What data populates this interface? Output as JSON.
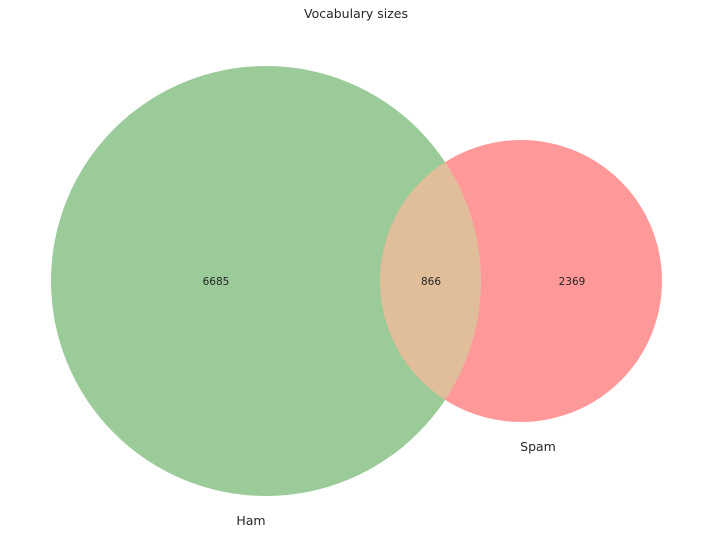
{
  "chart_data": {
    "type": "venn",
    "title": "Vocabulary sizes",
    "sets": [
      {
        "name": "Ham",
        "only_count": 6685,
        "color": "#9ACB98"
      },
      {
        "name": "Spam",
        "only_count": 2369,
        "color": "#FF9999"
      }
    ],
    "intersection": {
      "count": 866,
      "color": "#E0BE9A"
    },
    "region_labels": {
      "ham_only": "6685",
      "intersection": "866",
      "spam_only": "2369"
    }
  }
}
